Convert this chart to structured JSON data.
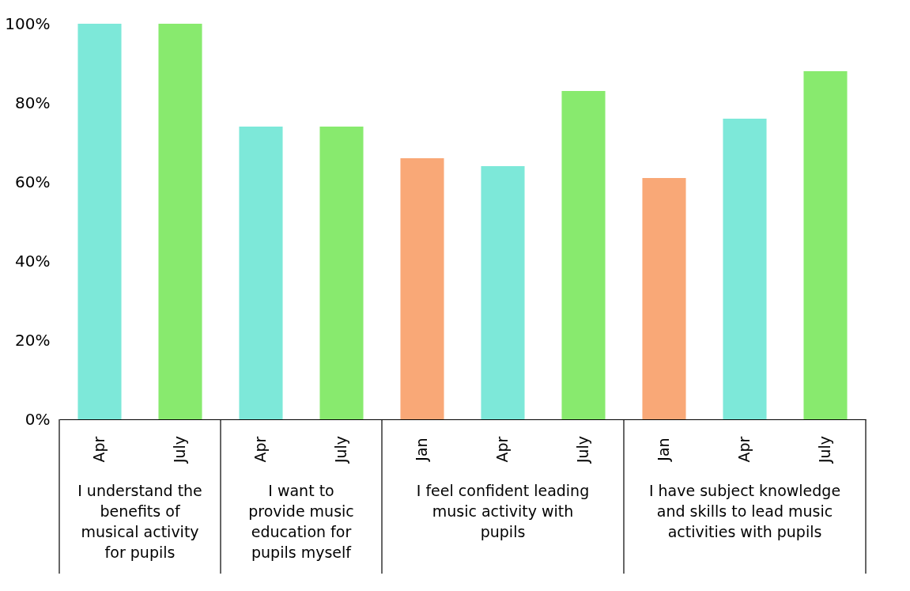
{
  "chart_data": {
    "type": "bar",
    "categories": [
      "I understand the benefits of musical activity for pupils",
      "I want to provide music education for pupils myself",
      "I feel confident leading music activity with pupils",
      "I have subject knowledge and skills to lead music activities with pupils"
    ],
    "series": [
      {
        "name": "Jan",
        "color": "#f9a877",
        "values": [
          null,
          null,
          66,
          61
        ]
      },
      {
        "name": "Apr",
        "color": "#7de8d9",
        "values": [
          100,
          74,
          64,
          76
        ]
      },
      {
        "name": "July",
        "color": "#88ea6e",
        "values": [
          100,
          74,
          83,
          88
        ]
      }
    ],
    "ylim": [
      0,
      100
    ],
    "yticks": [
      {
        "value": 0,
        "label": "0%"
      },
      {
        "value": 20,
        "label": "20%"
      },
      {
        "value": 40,
        "label": "40%"
      },
      {
        "value": 60,
        "label": "60%"
      },
      {
        "value": 80,
        "label": "80%"
      },
      {
        "value": 100,
        "label": "100%"
      }
    ],
    "grid": false
  }
}
